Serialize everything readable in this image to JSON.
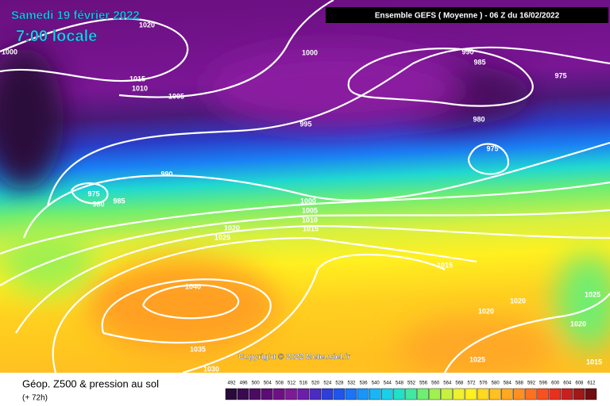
{
  "title": "Samedi 19 février 2022",
  "subtitle": "7:00 locale",
  "header": "Ensemble GEFS ( Moyenne ) - 06 Z du 16/02/2022",
  "copyright": "Copyright © 2022 Meteociel.fr",
  "footer": {
    "title": "Géop. Z500 & pression au sol",
    "lead_time": "(+ 72h)"
  },
  "isobar_labels": [
    1020,
    1000,
    1000,
    1015,
    1010,
    1005,
    995,
    990,
    985,
    975,
    980,
    975,
    990,
    975,
    980,
    985,
    1000,
    1005,
    1010,
    1015,
    1020,
    1025,
    1015,
    1040,
    1020,
    1020,
    1025,
    1020,
    1035,
    1030,
    1025,
    1015
  ],
  "colorbar": {
    "ticks": [
      492,
      496,
      500,
      504,
      508,
      512,
      516,
      520,
      524,
      528,
      532,
      536,
      540,
      544,
      548,
      552,
      556,
      560,
      564,
      568,
      572,
      576,
      580,
      584,
      588,
      592,
      596,
      600,
      604,
      608,
      612
    ],
    "colors": [
      "#2a0a3a",
      "#3a0a50",
      "#4b0b63",
      "#5c0c75",
      "#6d1086",
      "#7d1a96",
      "#6b1fa8",
      "#4b2cc0",
      "#2e3ed6",
      "#1f55ea",
      "#1a74f5",
      "#1a95f8",
      "#1ab5f5",
      "#1ad0e8",
      "#20e0c8",
      "#40e8a0",
      "#70ee70",
      "#a0f050",
      "#c8f040",
      "#eef030",
      "#fff020",
      "#ffd820",
      "#ffc020",
      "#ffa820",
      "#ff9020",
      "#ff7020",
      "#f85020",
      "#e83020",
      "#c82020",
      "#a01818",
      "#700f10"
    ]
  }
}
